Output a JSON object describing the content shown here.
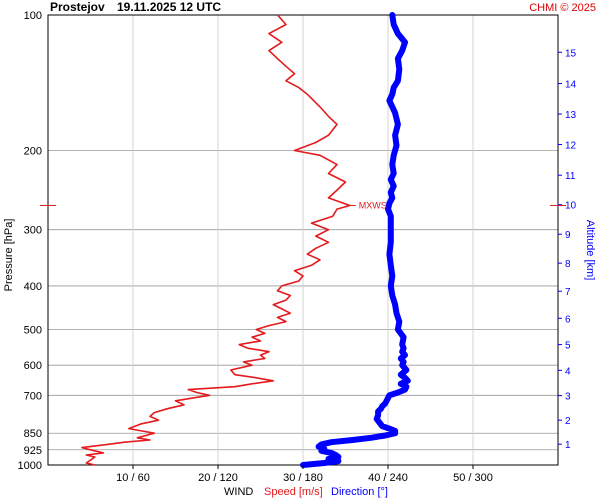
{
  "header": {
    "station": "Prostejov",
    "datetime": "19.11.2025 12 UTC",
    "credit": "CHMI © 2025"
  },
  "colors": {
    "speed": "#e41a1c",
    "direction": "#0000ff",
    "grid": "#999999",
    "axis_text": "#000000",
    "credit": "#e00000"
  },
  "chart_data": {
    "type": "line",
    "ylabel": "Pressure [hPa]",
    "y2label": "Altitude [km]",
    "xlabel": {
      "prefix": "WIND",
      "speed": "Speed [m/s]",
      "direction": "Direction [°]"
    },
    "y_scale": "log",
    "ylim": [
      1000,
      100
    ],
    "pressure_ticks": [
      100,
      200,
      300,
      400,
      500,
      600,
      700,
      850,
      925,
      1000
    ],
    "altitude_ticks": [
      {
        "km": 1,
        "p": 899
      },
      {
        "km": 2,
        "p": 795
      },
      {
        "km": 3,
        "p": 701
      },
      {
        "km": 4,
        "p": 616
      },
      {
        "km": 5,
        "p": 540
      },
      {
        "km": 6,
        "p": 472
      },
      {
        "km": 7,
        "p": 411
      },
      {
        "km": 8,
        "p": 356
      },
      {
        "km": 9,
        "p": 307
      },
      {
        "km": 10,
        "p": 264
      },
      {
        "km": 11,
        "p": 227
      },
      {
        "km": 12,
        "p": 194
      },
      {
        "km": 13,
        "p": 166
      },
      {
        "km": 14,
        "p": 142
      },
      {
        "km": 15,
        "p": 121
      }
    ],
    "speed_range": [
      0,
      60
    ],
    "direction_range": [
      0,
      360
    ],
    "x_ticks": [
      {
        "speed": 10,
        "direction": 60,
        "label": "10 / 60"
      },
      {
        "speed": 20,
        "direction": 120,
        "label": "20 / 120"
      },
      {
        "speed": 30,
        "direction": 180,
        "label": "30 / 180"
      },
      {
        "speed": 40,
        "direction": 240,
        "label": "40 / 240"
      },
      {
        "speed": 50,
        "direction": 300,
        "label": "50 / 300"
      }
    ],
    "max_wind": {
      "label": "MXWS",
      "p": 265,
      "speed": 35.5
    },
    "series": [
      {
        "name": "Speed [m/s]",
        "unit": "m/s",
        "points": [
          [
            1000,
            5.5
          ],
          [
            990,
            4.5
          ],
          [
            975,
            5
          ],
          [
            960,
            5.5
          ],
          [
            950,
            4.5
          ],
          [
            940,
            6.5
          ],
          [
            925,
            5
          ],
          [
            915,
            4
          ],
          [
            900,
            7
          ],
          [
            890,
            9
          ],
          [
            880,
            12
          ],
          [
            870,
            10.5
          ],
          [
            860,
            11.5
          ],
          [
            850,
            12.5
          ],
          [
            840,
            11
          ],
          [
            830,
            9.5
          ],
          [
            810,
            11
          ],
          [
            795,
            13
          ],
          [
            780,
            12
          ],
          [
            765,
            12.5
          ],
          [
            750,
            14
          ],
          [
            735,
            16
          ],
          [
            720,
            15
          ],
          [
            700,
            19
          ],
          [
            690,
            17.5
          ],
          [
            680,
            16.5
          ],
          [
            670,
            22
          ],
          [
            660,
            24
          ],
          [
            650,
            26.5
          ],
          [
            640,
            24.5
          ],
          [
            630,
            22
          ],
          [
            615,
            21.5
          ],
          [
            600,
            24
          ],
          [
            590,
            23
          ],
          [
            580,
            25.5
          ],
          [
            570,
            25
          ],
          [
            560,
            26
          ],
          [
            550,
            23.5
          ],
          [
            540,
            22.5
          ],
          [
            530,
            25
          ],
          [
            520,
            24
          ],
          [
            510,
            25.5
          ],
          [
            500,
            24.5
          ],
          [
            490,
            26
          ],
          [
            480,
            28
          ],
          [
            470,
            27
          ],
          [
            460,
            28.5
          ],
          [
            450,
            27.5
          ],
          [
            440,
            26.5
          ],
          [
            430,
            28
          ],
          [
            420,
            28.5
          ],
          [
            410,
            27
          ],
          [
            400,
            27.5
          ],
          [
            390,
            29.5
          ],
          [
            380,
            30
          ],
          [
            370,
            29
          ],
          [
            360,
            31
          ],
          [
            350,
            32
          ],
          [
            340,
            30.5
          ],
          [
            330,
            31.5
          ],
          [
            320,
            33
          ],
          [
            310,
            31.5
          ],
          [
            300,
            33
          ],
          [
            290,
            31
          ],
          [
            280,
            33.5
          ],
          [
            270,
            34
          ],
          [
            265,
            35.5
          ],
          [
            255,
            33
          ],
          [
            245,
            34
          ],
          [
            235,
            35
          ],
          [
            225,
            33
          ],
          [
            215,
            34
          ],
          [
            205,
            32
          ],
          [
            200,
            29
          ],
          [
            192,
            31.5
          ],
          [
            185,
            33
          ],
          [
            175,
            34
          ],
          [
            168,
            33
          ],
          [
            160,
            32
          ],
          [
            150,
            30.5
          ],
          [
            145,
            29.5
          ],
          [
            140,
            28
          ],
          [
            135,
            29
          ],
          [
            130,
            28
          ],
          [
            125,
            27
          ],
          [
            120,
            26
          ],
          [
            115,
            27.5
          ],
          [
            110,
            26
          ],
          [
            105,
            28
          ],
          [
            100,
            27
          ]
        ]
      },
      {
        "name": "Direction [°]",
        "unit": "deg",
        "points": [
          [
            1000,
            180
          ],
          [
            990,
            195
          ],
          [
            980,
            205
          ],
          [
            970,
            198
          ],
          [
            960,
            205
          ],
          [
            950,
            203
          ],
          [
            940,
            200
          ],
          [
            930,
            193
          ],
          [
            920,
            195
          ],
          [
            910,
            191
          ],
          [
            900,
            193
          ],
          [
            890,
            200
          ],
          [
            880,
            215
          ],
          [
            870,
            228
          ],
          [
            860,
            238
          ],
          [
            850,
            245
          ],
          [
            840,
            245
          ],
          [
            830,
            241
          ],
          [
            820,
            236
          ],
          [
            805,
            234
          ],
          [
            790,
            232
          ],
          [
            775,
            233
          ],
          [
            760,
            233
          ],
          [
            750,
            235
          ],
          [
            740,
            236
          ],
          [
            730,
            238
          ],
          [
            720,
            239
          ],
          [
            700,
            241
          ],
          [
            690,
            247
          ],
          [
            680,
            252
          ],
          [
            670,
            253
          ],
          [
            660,
            249
          ],
          [
            650,
            254
          ],
          [
            640,
            252
          ],
          [
            630,
            249
          ],
          [
            615,
            253
          ],
          [
            600,
            250
          ],
          [
            590,
            251
          ],
          [
            580,
            249
          ],
          [
            570,
            252
          ],
          [
            560,
            250
          ],
          [
            550,
            251
          ],
          [
            540,
            250
          ],
          [
            520,
            251
          ],
          [
            500,
            247
          ],
          [
            480,
            248
          ],
          [
            460,
            246
          ],
          [
            440,
            245
          ],
          [
            420,
            243
          ],
          [
            400,
            242
          ],
          [
            380,
            243
          ],
          [
            360,
            242
          ],
          [
            340,
            241
          ],
          [
            320,
            242
          ],
          [
            300,
            242
          ],
          [
            290,
            242
          ],
          [
            280,
            242
          ],
          [
            270,
            240
          ],
          [
            262,
            241
          ],
          [
            255,
            243
          ],
          [
            248,
            242
          ],
          [
            240,
            244
          ],
          [
            232,
            242
          ],
          [
            225,
            244
          ],
          [
            215,
            243
          ],
          [
            205,
            244
          ],
          [
            195,
            246
          ],
          [
            185,
            245
          ],
          [
            175,
            247
          ],
          [
            165,
            245
          ],
          [
            160,
            243
          ],
          [
            155,
            241
          ],
          [
            150,
            243
          ],
          [
            145,
            244
          ],
          [
            140,
            247
          ],
          [
            132,
            248
          ],
          [
            125,
            247
          ],
          [
            120,
            250
          ],
          [
            115,
            252
          ],
          [
            110,
            247
          ],
          [
            105,
            244
          ],
          [
            100,
            243
          ]
        ]
      }
    ]
  }
}
